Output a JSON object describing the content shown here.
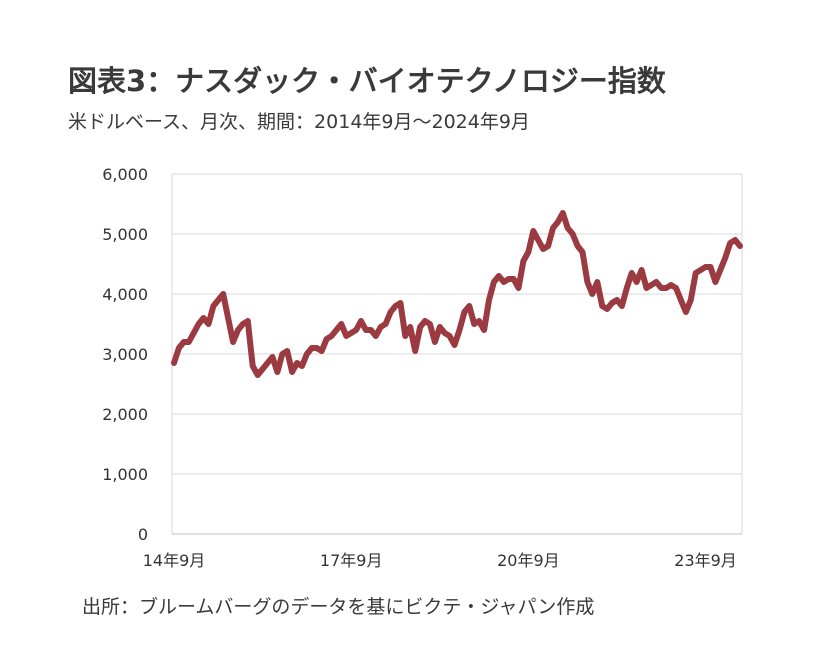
{
  "chart_data": {
    "type": "line",
    "title": "図表3：ナスダック・バイオテクノロジー指数",
    "subtitle": "米ドルベース、月次、期間：2014年9月～2024年9月",
    "source": "出所：ブルームバーグのデータを基にビクテ・ジャパン作成",
    "xlabel": "",
    "ylabel": "",
    "ylim": [
      0,
      6000
    ],
    "yticks": [
      "0",
      "1,000",
      "2,000",
      "3,000",
      "4,000",
      "5,000",
      "6,000"
    ],
    "xticks": [
      {
        "label": "14年9月",
        "index": 0
      },
      {
        "label": "17年9月",
        "index": 36
      },
      {
        "label": "20年9月",
        "index": 72
      },
      {
        "label": "23年9月",
        "index": 108
      }
    ],
    "grid": true,
    "line_color": "#9b3a40",
    "series": [
      {
        "values": [
          2850,
          3100,
          3200,
          3200,
          3350,
          3500,
          3600,
          3500,
          3800,
          3900,
          4000,
          3600,
          3200,
          3400,
          3500,
          3550,
          2800,
          2650,
          2750,
          2850,
          2950,
          2700,
          3000,
          3050,
          2700,
          2850,
          2800,
          3000,
          3100,
          3100,
          3050,
          3250,
          3300,
          3400,
          3500,
          3300,
          3350,
          3400,
          3550,
          3400,
          3400,
          3300,
          3450,
          3500,
          3700,
          3800,
          3850,
          3300,
          3450,
          3050,
          3450,
          3550,
          3500,
          3200,
          3450,
          3350,
          3300,
          3150,
          3400,
          3700,
          3800,
          3500,
          3550,
          3400,
          3900,
          4200,
          4300,
          4200,
          4250,
          4250,
          4100,
          4550,
          4700,
          5050,
          4900,
          4750,
          4800,
          5100,
          5200,
          5350,
          5100,
          5000,
          4800,
          4700,
          4200,
          4000,
          4200,
          3800,
          3750,
          3850,
          3900,
          3800,
          4100,
          4350,
          4200,
          4400,
          4100,
          4150,
          4200,
          4100,
          4100,
          4150,
          4100,
          3900,
          3700,
          3900,
          4350,
          4400,
          4450,
          4450,
          4200,
          4400,
          4600,
          4850,
          4900,
          4800
        ]
      }
    ]
  }
}
